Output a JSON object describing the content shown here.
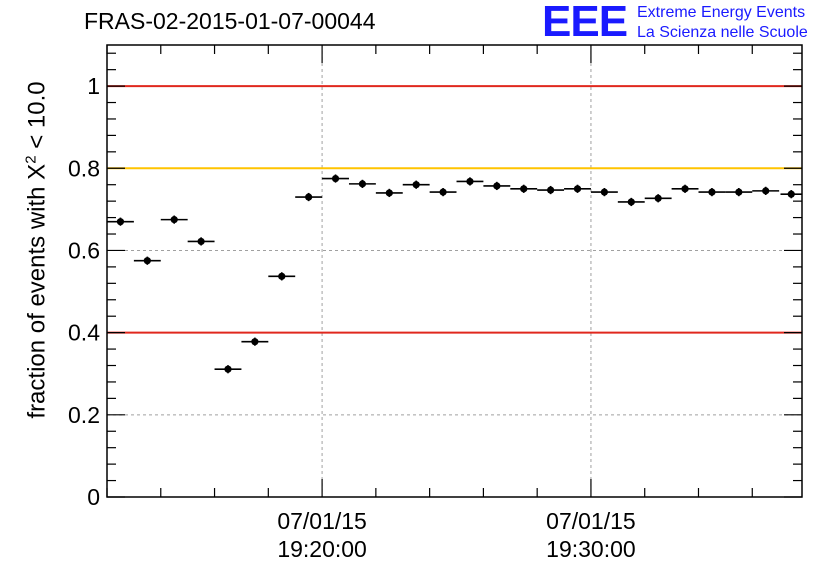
{
  "header": {
    "title": "FRAS-02-2015-01-07-00044",
    "logo_mark": "EEE",
    "logo_line1": "Extreme Energy Events",
    "logo_line2": "La Scienza nelle Scuole"
  },
  "chart_data": {
    "type": "scatter",
    "title": "FRAS-02-2015-01-07-00044",
    "ylabel_prefix": "fraction of events with X",
    "ylabel_sup": "2",
    "ylabel_suffix": " < 10.0",
    "xlabel": "",
    "ylim": [
      0,
      1.1
    ],
    "yticks": [
      0,
      0.2,
      0.4,
      0.6,
      0.8,
      1
    ],
    "ytick_labels": [
      "0",
      "0.2",
      "0.4",
      "0.6",
      "0.8",
      "1"
    ],
    "xlim_minutes": [
      0,
      25.85
    ],
    "xticks": [
      {
        "minute": 8,
        "date": "07/01/15",
        "time": "19:20:00"
      },
      {
        "minute": 18,
        "date": "07/01/15",
        "time": "19:30:00"
      }
    ],
    "grid": true,
    "reference_lines": [
      {
        "y": 1.0,
        "color": "#e0281e"
      },
      {
        "y": 0.8,
        "color": "#ffc400"
      },
      {
        "y": 0.4,
        "color": "#e0281e"
      }
    ],
    "marker_color": "#000000",
    "series": [
      {
        "x": [
          0.5,
          1.5,
          2.5,
          3.5,
          4.5,
          5.5,
          6.5,
          7.5,
          8.5,
          9.5,
          10.5,
          11.5,
          12.5,
          13.5,
          14.5,
          15.5,
          16.5,
          17.5,
          18.5,
          19.5,
          20.5,
          21.5,
          22.5,
          23.5,
          24.5,
          25.45
        ],
        "y": [
          0.67,
          0.575,
          0.675,
          0.622,
          0.311,
          0.378,
          0.537,
          0.73,
          0.775,
          0.762,
          0.74,
          0.76,
          0.742,
          0.768,
          0.757,
          0.75,
          0.747,
          0.75,
          0.742,
          0.718,
          0.727,
          0.75,
          0.742,
          0.742,
          0.745,
          0.737
        ],
        "xerr": [
          0.5,
          0.5,
          0.5,
          0.5,
          0.5,
          0.5,
          0.5,
          0.5,
          0.5,
          0.5,
          0.5,
          0.5,
          0.5,
          0.5,
          0.5,
          0.5,
          0.5,
          0.5,
          0.5,
          0.5,
          0.5,
          0.5,
          0.5,
          0.5,
          0.5,
          0.4
        ],
        "yerr": [
          0.01,
          0.01,
          0.01,
          0.01,
          0.01,
          0.01,
          0.01,
          0.01,
          0.01,
          0.01,
          0.01,
          0.01,
          0.01,
          0.01,
          0.01,
          0.01,
          0.01,
          0.01,
          0.01,
          0.01,
          0.01,
          0.01,
          0.01,
          0.01,
          0.01,
          0.01
        ]
      }
    ]
  }
}
